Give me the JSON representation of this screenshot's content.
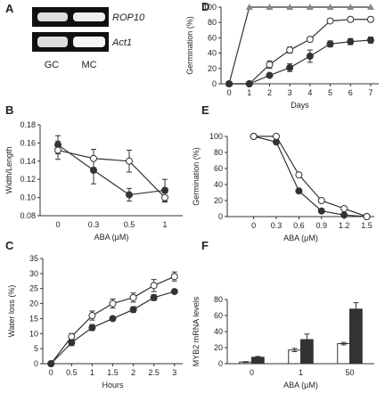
{
  "gel": {
    "panel": "A",
    "bands": [
      "ROP10",
      "Act1"
    ],
    "lanes": [
      "GC",
      "MC"
    ]
  },
  "chart_data": [
    {
      "type": "line",
      "panel": "B",
      "xlabel": "ABA (μM)",
      "ylabel": "Width/Length",
      "categories": [
        "0",
        "0.3",
        "0.5",
        "1"
      ],
      "ylim": [
        0.08,
        0.18
      ],
      "yticks": [
        0.08,
        {
          "value": 0.1,
          "label": "0.10"
        },
        0.12,
        0.14,
        0.16,
        0.18
      ],
      "series": [
        {
          "marker": "filled",
          "color": "#333333",
          "values": [
            0.158,
            0.13,
            0.103,
            0.108
          ],
          "errors": [
            0.01,
            0.015,
            0.007,
            0.012
          ]
        },
        {
          "marker": "open",
          "color": "#333333",
          "values": [
            0.152,
            0.143,
            0.14,
            0.1
          ],
          "errors": [
            0.01,
            0.01,
            0.012,
            0.005
          ]
        }
      ]
    },
    {
      "type": "line",
      "panel": "C",
      "xlabel": "Hours",
      "ylabel": "Water loss (%)",
      "x": [
        0,
        0.5,
        1,
        1.5,
        2,
        2.5,
        3
      ],
      "xlim": [
        -0.2,
        3.2
      ],
      "xticks": [
        0,
        0.5,
        1,
        1.5,
        2,
        2.5,
        3
      ],
      "ylim": [
        0,
        35
      ],
      "yticks": [
        0,
        5,
        10,
        15,
        20,
        25,
        30,
        35
      ],
      "series": [
        {
          "marker": "open",
          "color": "#333333",
          "values": [
            0,
            9,
            16,
            20,
            22,
            26,
            29
          ],
          "errors": [
            0,
            1,
            1.5,
            1.5,
            1.5,
            2,
            1.5
          ]
        },
        {
          "marker": "filled",
          "color": "#333333",
          "values": [
            0,
            7,
            12,
            15,
            18,
            22,
            24
          ],
          "errors": [
            0,
            1,
            1,
            0.5,
            1,
            1,
            0.5
          ]
        }
      ]
    },
    {
      "type": "line",
      "panel": "D",
      "xlabel": "Days",
      "ylabel": "Germination (%)",
      "x": [
        0,
        1,
        2,
        3,
        4,
        5,
        6,
        7
      ],
      "xlim": [
        -0.4,
        7.4
      ],
      "xticks": [
        0,
        1,
        2,
        3,
        4,
        5,
        6,
        7
      ],
      "ylim": [
        0,
        100
      ],
      "yticks": [
        0,
        20,
        40,
        60,
        80,
        100
      ],
      "series": [
        {
          "marker": "triangle",
          "color": "#888888",
          "values": [
            0,
            100,
            100,
            100,
            100,
            100,
            100,
            100
          ]
        },
        {
          "marker": "open",
          "color": "#333333",
          "values": [
            0,
            0,
            25,
            44,
            58,
            82,
            84,
            84
          ],
          "errors": [
            0,
            0,
            5,
            4,
            3,
            3,
            3,
            3
          ]
        },
        {
          "marker": "filled",
          "color": "#333333",
          "values": [
            0,
            0,
            11,
            21,
            36,
            52,
            55,
            57
          ],
          "errors": [
            0,
            0,
            2,
            5,
            8,
            4,
            4,
            4
          ]
        }
      ]
    },
    {
      "type": "line",
      "panel": "E",
      "xlabel": "ABA (μM)",
      "ylabel": "Germination (%)",
      "x": [
        0,
        0.3,
        0.6,
        0.9,
        1.2,
        1.5
      ],
      "xlim": [
        -0.35,
        1.6
      ],
      "xticks": [
        0,
        0.3,
        0.6,
        0.9,
        1.2,
        1.5
      ],
      "ylim": [
        0,
        100
      ],
      "yticks": [
        0,
        20,
        40,
        60,
        80,
        100
      ],
      "series": [
        {
          "marker": "filled",
          "color": "#333333",
          "values": [
            100,
            93,
            32,
            7,
            2,
            0
          ]
        },
        {
          "marker": "open",
          "color": "#333333",
          "values": [
            100,
            100,
            52,
            20,
            10,
            0
          ]
        }
      ]
    },
    {
      "type": "bar",
      "panel": "F",
      "xlabel": "ABA (μM)",
      "ylabel": "MYB2 mRNA levels",
      "categories": [
        "0",
        "1",
        "50"
      ],
      "ylim": [
        0,
        80
      ],
      "yticks": [
        0,
        20,
        40,
        60,
        80
      ],
      "series": [
        {
          "color": "#ffffff",
          "values": [
            2,
            17,
            25
          ],
          "errors": [
            0.5,
            2,
            1.5
          ]
        },
        {
          "color": "#333333",
          "values": [
            8,
            30,
            68
          ],
          "errors": [
            1,
            7,
            8
          ]
        }
      ]
    }
  ]
}
